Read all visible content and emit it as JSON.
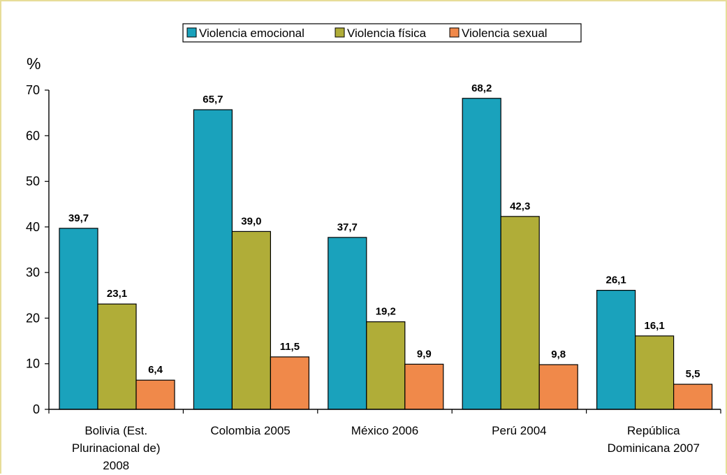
{
  "chart_data": {
    "type": "bar",
    "title": "",
    "ylabel": "%",
    "xlabel": "",
    "ylim": [
      0,
      70
    ],
    "yticks": [
      0,
      10,
      20,
      30,
      40,
      50,
      60,
      70
    ],
    "grid": false,
    "legend_position": "top",
    "categories": [
      [
        "Bolivia (Est.",
        "Plurinacional de)",
        "2008"
      ],
      [
        "Colombia 2005"
      ],
      [
        "México 2006"
      ],
      [
        "Perú 2004"
      ],
      [
        "República",
        "Dominicana 2007"
      ]
    ],
    "series": [
      {
        "name": "Violencia emocional",
        "color": "#1aa2bc",
        "values": [
          39.7,
          65.7,
          37.7,
          68.2,
          26.1
        ],
        "labels": [
          "39,7",
          "65,7",
          "37,7",
          "68,2",
          "26,1"
        ]
      },
      {
        "name": "Violencia física",
        "color": "#b0ad38",
        "values": [
          23.1,
          39.0,
          19.2,
          42.3,
          16.1
        ],
        "labels": [
          "23,1",
          "39,0",
          "19,2",
          "42,3",
          "16,1"
        ]
      },
      {
        "name": "Violencia sexual",
        "color": "#f0894a",
        "values": [
          6.4,
          11.5,
          9.9,
          9.8,
          5.5
        ],
        "labels": [
          "6,4",
          "11,5",
          "9,9",
          "9,8",
          "5,5"
        ]
      }
    ]
  }
}
